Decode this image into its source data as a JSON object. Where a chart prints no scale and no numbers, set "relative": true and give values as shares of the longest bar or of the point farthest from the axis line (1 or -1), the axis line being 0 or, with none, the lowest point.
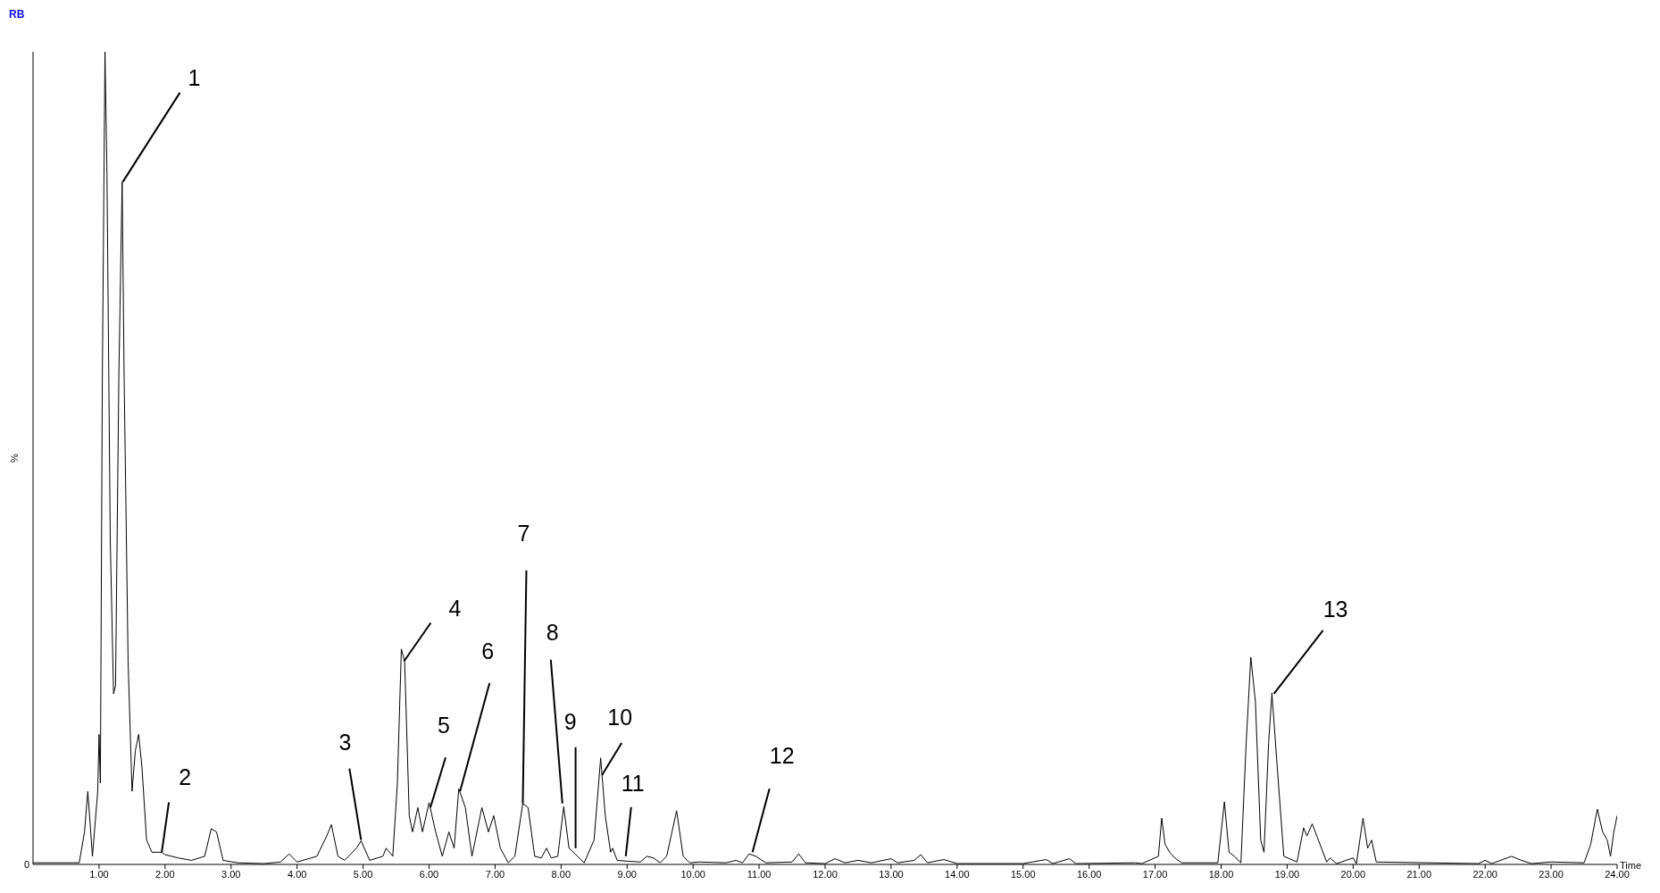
{
  "chart_data": {
    "type": "line",
    "relative": true,
    "ylabel": "%",
    "xlabel": "Time",
    "xlim": [
      0,
      24
    ],
    "xticks": [
      {
        "value": 1,
        "label": "1.00"
      },
      {
        "value": 2,
        "label": "2.00"
      },
      {
        "value": 3,
        "label": "3.00"
      },
      {
        "value": 4,
        "label": "4.00"
      },
      {
        "value": 5,
        "label": "5.00"
      },
      {
        "value": 6,
        "label": "6.00"
      },
      {
        "value": 7,
        "label": "7.00"
      },
      {
        "value": 8,
        "label": "8.00"
      },
      {
        "value": 9,
        "label": "9.00"
      },
      {
        "value": 10,
        "label": "10.00"
      },
      {
        "value": 11,
        "label": "11.00"
      },
      {
        "value": 12,
        "label": "12.00"
      },
      {
        "value": 13,
        "label": "13.00"
      },
      {
        "value": 14,
        "label": "14.00"
      },
      {
        "value": 15,
        "label": "15.00"
      },
      {
        "value": 16,
        "label": "16.00"
      },
      {
        "value": 17,
        "label": "17.00"
      },
      {
        "value": 18,
        "label": "18.00"
      },
      {
        "value": 19,
        "label": "19.00"
      },
      {
        "value": 20,
        "label": "20.00"
      },
      {
        "value": 21,
        "label": "21.00"
      },
      {
        "value": 22,
        "label": "22.00"
      },
      {
        "value": 23,
        "label": "23.00"
      },
      {
        "value": 24,
        "label": "24.00"
      }
    ],
    "grid": false,
    "legend": false,
    "marker": "none",
    "line_style": "solid",
    "x": [
      0,
      0.7,
      0.78,
      0.83,
      0.9,
      0.98,
      1.0,
      1.02,
      1.05,
      1.09,
      1.12,
      1.17,
      1.22,
      1.25,
      1.3,
      1.35,
      1.38,
      1.44,
      1.5,
      1.55,
      1.6,
      1.65,
      1.72,
      1.8,
      1.95,
      2.0,
      2.2,
      2.4,
      2.6,
      2.7,
      2.78,
      2.88,
      3.1,
      3.5,
      3.75,
      3.88,
      4.0,
      4.3,
      4.45,
      4.52,
      4.62,
      4.72,
      4.9,
      4.97,
      5.1,
      5.3,
      5.35,
      5.45,
      5.52,
      5.58,
      5.63,
      5.7,
      5.75,
      5.83,
      5.9,
      6.0,
      6.1,
      6.2,
      6.3,
      6.38,
      6.45,
      6.55,
      6.65,
      6.8,
      6.9,
      6.98,
      7.08,
      7.2,
      7.3,
      7.42,
      7.5,
      7.6,
      7.7,
      7.78,
      7.85,
      7.95,
      8.04,
      8.12,
      8.25,
      8.35,
      8.5,
      8.6,
      8.67,
      8.75,
      8.78,
      8.85,
      9.0,
      9.2,
      9.3,
      9.4,
      9.5,
      9.6,
      9.75,
      9.85,
      9.95,
      10.1,
      10.5,
      10.65,
      10.75,
      10.85,
      10.95,
      11.1,
      11.5,
      11.6,
      11.7,
      12.0,
      12.15,
      12.3,
      12.5,
      12.7,
      13.0,
      13.1,
      13.35,
      13.45,
      13.55,
      13.8,
      14.0,
      15.0,
      15.35,
      15.45,
      15.7,
      15.8,
      16.7,
      16.8,
      17.05,
      17.1,
      17.15,
      17.22,
      17.3,
      17.4,
      17.95,
      18.05,
      18.12,
      18.2,
      18.3,
      18.38,
      18.45,
      18.52,
      18.6,
      18.65,
      18.72,
      18.77,
      18.85,
      18.95,
      19.15,
      19.25,
      19.3,
      19.38,
      19.45,
      19.6,
      19.65,
      19.75,
      20.0,
      20.05,
      20.15,
      20.22,
      20.28,
      20.35,
      21.9,
      22.0,
      22.1,
      22.4,
      22.55,
      22.7,
      23.0,
      23.5,
      23.6,
      23.7,
      23.78,
      23.85,
      23.9,
      23.95,
      24.0
    ],
    "series": [
      {
        "color": "#000000",
        "values": [
          0.002,
          0.002,
          0.04,
          0.09,
          0.01,
          0.09,
          0.16,
          0.1,
          0.6,
          1.0,
          0.85,
          0.4,
          0.21,
          0.22,
          0.6,
          0.84,
          0.6,
          0.25,
          0.09,
          0.14,
          0.16,
          0.12,
          0.03,
          0.015,
          0.015,
          0.012,
          0.008,
          0.005,
          0.01,
          0.044,
          0.04,
          0.005,
          0.002,
          0.001,
          0.003,
          0.013,
          0.003,
          0.01,
          0.035,
          0.049,
          0.01,
          0.005,
          0.02,
          0.029,
          0.005,
          0.01,
          0.02,
          0.01,
          0.1,
          0.265,
          0.25,
          0.06,
          0.04,
          0.07,
          0.04,
          0.076,
          0.04,
          0.01,
          0.04,
          0.02,
          0.093,
          0.07,
          0.01,
          0.07,
          0.04,
          0.06,
          0.02,
          0.002,
          0.01,
          0.075,
          0.07,
          0.01,
          0.008,
          0.02,
          0.008,
          0.01,
          0.071,
          0.02,
          0.01,
          0.002,
          0.03,
          0.131,
          0.06,
          0.015,
          0.02,
          0.005,
          0.004,
          0.003,
          0.01,
          0.008,
          0.002,
          0.01,
          0.066,
          0.01,
          0.002,
          0.003,
          0.002,
          0.005,
          0.002,
          0.013,
          0.01,
          0.002,
          0.003,
          0.013,
          0.002,
          0.001,
          0.007,
          0.002,
          0.005,
          0.002,
          0.007,
          0.002,
          0.005,
          0.012,
          0.002,
          0.006,
          0.001,
          0.001,
          0.006,
          0.001,
          0.007,
          0.001,
          0.002,
          0.001,
          0.01,
          0.057,
          0.025,
          0.015,
          0.008,
          0.002,
          0.002,
          0.077,
          0.015,
          0.01,
          0.002,
          0.15,
          0.255,
          0.2,
          0.03,
          0.015,
          0.15,
          0.211,
          0.12,
          0.01,
          0.003,
          0.045,
          0.035,
          0.05,
          0.035,
          0.003,
          0.008,
          0.001,
          0.008,
          0.001,
          0.057,
          0.02,
          0.03,
          0.003,
          0.001,
          0.005,
          0.001,
          0.01,
          0.005,
          0.001,
          0.003,
          0.002,
          0.025,
          0.068,
          0.04,
          0.03,
          0.01,
          0.04,
          0.06
        ]
      }
    ],
    "annotations": [
      "RB",
      "0",
      {
        "text": "1",
        "x": 1.36,
        "y": 0.84
      },
      {
        "text": "2",
        "x": 1.95,
        "y": 0.015
      },
      {
        "text": "3",
        "x": 4.97,
        "y": 0.03
      },
      {
        "text": "4",
        "x": 5.62,
        "y": 0.25
      },
      {
        "text": "5",
        "x": 6.02,
        "y": 0.07
      },
      {
        "text": "6",
        "x": 6.47,
        "y": 0.09
      },
      {
        "text": "7",
        "x": 7.42,
        "y": 0.075
      },
      {
        "text": "8",
        "x": 8.02,
        "y": 0.075
      },
      {
        "text": "9",
        "x": 8.22,
        "y": 0.02
      },
      {
        "text": "10",
        "x": 8.62,
        "y": 0.11
      },
      {
        "text": "11",
        "x": 8.98,
        "y": 0.01
      },
      {
        "text": "12",
        "x": 10.9,
        "y": 0.015
      },
      {
        "text": "13",
        "x": 18.8,
        "y": 0.21
      }
    ]
  }
}
